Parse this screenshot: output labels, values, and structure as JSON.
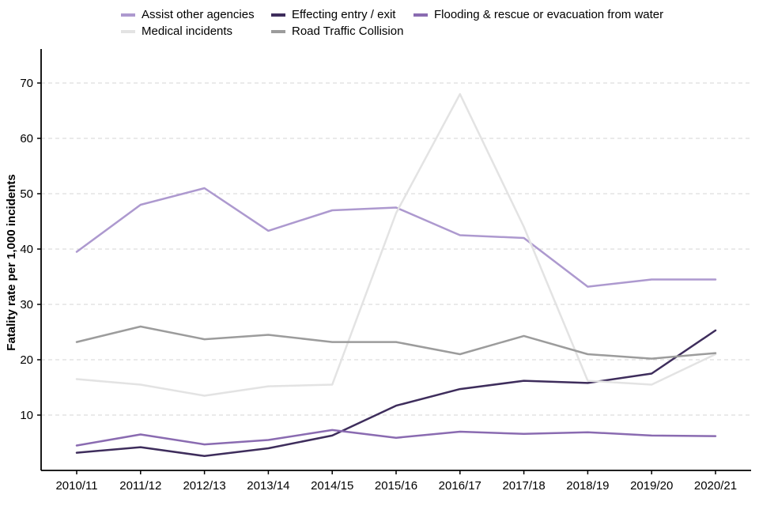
{
  "chart_data": {
    "type": "line",
    "title": "",
    "xlabel": "",
    "ylabel": "Fatality rate per 1,000 incidents",
    "ylim": [
      0,
      75
    ],
    "yticks": [
      10,
      20,
      30,
      40,
      50,
      60,
      70
    ],
    "grid": "horizontal-dashed",
    "legend_position": "top",
    "categories": [
      "2010/11",
      "2011/12",
      "2012/13",
      "2013/14",
      "2014/15",
      "2015/16",
      "2016/17",
      "2017/18",
      "2018/19",
      "2019/20",
      "2020/21"
    ],
    "series": [
      {
        "name": "Assist other agencies",
        "color": "#ad99cf",
        "values": [
          39.5,
          48,
          51,
          43.3,
          47,
          47.5,
          42.5,
          42,
          33.2,
          34.5,
          34.5
        ]
      },
      {
        "name": "Effecting entry / exit",
        "color": "#3e2d5c",
        "values": [
          3.2,
          4.2,
          2.6,
          4,
          6.3,
          11.7,
          14.7,
          16.2,
          15.8,
          17.5,
          25.3
        ]
      },
      {
        "name": "Flooding & rescue or evacuation from water",
        "color": "#8a6bb1",
        "values": [
          4.5,
          6.5,
          4.7,
          5.5,
          7.3,
          5.9,
          7,
          6.6,
          6.9,
          6.3,
          6.2
        ]
      },
      {
        "name": "Medical incidents",
        "color": "#e3e3e3",
        "values": [
          16.5,
          15.5,
          13.5,
          15.2,
          15.5,
          46.5,
          68,
          44,
          16.2,
          15.5,
          21
        ]
      },
      {
        "name": "Road Traffic Collision",
        "color": "#9c9c9c",
        "values": [
          23.2,
          26,
          23.7,
          24.5,
          23.2,
          23.2,
          21,
          24.3,
          21,
          20.2,
          21.2
        ]
      }
    ]
  },
  "axis_style": {
    "axis_color": "#000000",
    "gridline_color": "#d4d4d4",
    "background": "#ffffff"
  }
}
